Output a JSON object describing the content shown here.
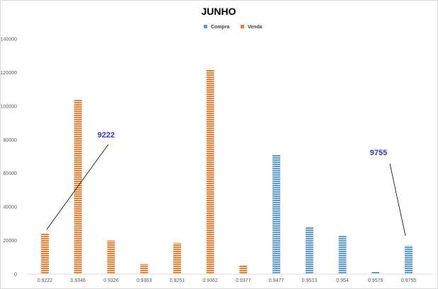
{
  "chart_data": {
    "type": "bar",
    "title": "JUNHO",
    "xlabel": "",
    "ylabel": "",
    "categories": [
      "0.9222",
      "0.9346",
      "0.9326",
      "0.9303",
      "0.9251",
      "0.9362",
      "0.9377",
      "0.9477",
      "0.9513",
      "0.954",
      "0.9576",
      "0.9755"
    ],
    "ylim": [
      0,
      140000
    ],
    "yticks": [
      0,
      20000,
      40000,
      60000,
      80000,
      100000,
      120000,
      140000
    ],
    "grid": false,
    "legend_position": "top-center",
    "series": [
      {
        "name": "Compra",
        "color": "#5b9bd5",
        "values": [
          0,
          0,
          0,
          0,
          0,
          0,
          0,
          71000,
          28000,
          23000,
          1500,
          17000
        ]
      },
      {
        "name": "Venda",
        "color": "#ed7d31",
        "values": [
          24000,
          104000,
          20000,
          6000,
          18500,
          121500,
          5500,
          0,
          0,
          0,
          0,
          0
        ]
      }
    ],
    "annotations": [
      {
        "text": "9222",
        "target_category": "0.9222"
      },
      {
        "text": "9755",
        "target_category": "0.9755"
      }
    ]
  }
}
